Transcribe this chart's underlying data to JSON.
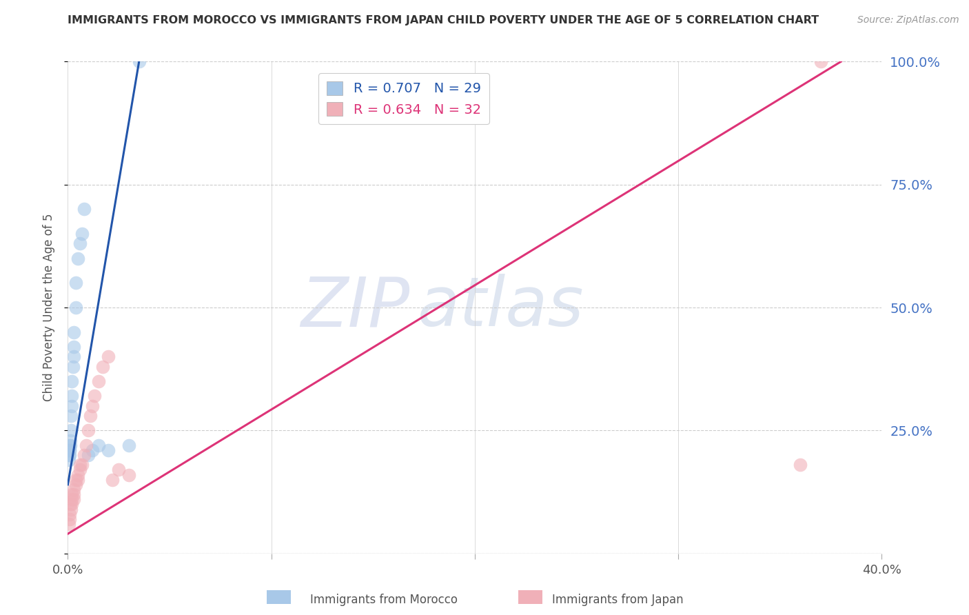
{
  "title": "IMMIGRANTS FROM MOROCCO VS IMMIGRANTS FROM JAPAN CHILD POVERTY UNDER THE AGE OF 5 CORRELATION CHART",
  "source": "Source: ZipAtlas.com",
  "ylabel": "Child Poverty Under the Age of 5",
  "watermark_zip": "ZIP",
  "watermark_atlas": "atlas",
  "xlim": [
    0.0,
    0.4
  ],
  "ylim": [
    0.0,
    1.0
  ],
  "yticks": [
    0.0,
    0.25,
    0.5,
    0.75,
    1.0
  ],
  "ytick_labels": [
    "",
    "25.0%",
    "50.0%",
    "75.0%",
    "100.0%"
  ],
  "xticks": [
    0.0,
    0.1,
    0.2,
    0.3,
    0.4
  ],
  "xtick_labels": [
    "0.0%",
    "",
    "",
    "",
    "40.0%"
  ],
  "morocco_R": 0.707,
  "morocco_N": 29,
  "japan_R": 0.634,
  "japan_N": 32,
  "morocco_color": "#a8c8e8",
  "japan_color": "#f0b0b8",
  "morocco_line_color": "#2255aa",
  "japan_line_color": "#dd3377",
  "legend_morocco_label": "R = 0.707   N = 29",
  "legend_japan_label": "R = 0.634   N = 32",
  "bottom_legend_morocco": "Immigrants from Morocco",
  "bottom_legend_japan": "Immigrants from Japan",
  "morocco_x": [
    0.0005,
    0.0005,
    0.0008,
    0.001,
    0.001,
    0.001,
    0.0012,
    0.0012,
    0.0015,
    0.0015,
    0.002,
    0.002,
    0.002,
    0.0025,
    0.003,
    0.003,
    0.003,
    0.004,
    0.004,
    0.005,
    0.006,
    0.007,
    0.008,
    0.01,
    0.012,
    0.015,
    0.02,
    0.03,
    0.035
  ],
  "morocco_y": [
    0.19,
    0.2,
    0.21,
    0.2,
    0.21,
    0.22,
    0.22,
    0.23,
    0.25,
    0.28,
    0.3,
    0.32,
    0.35,
    0.38,
    0.4,
    0.42,
    0.45,
    0.5,
    0.55,
    0.6,
    0.63,
    0.65,
    0.7,
    0.2,
    0.21,
    0.22,
    0.21,
    0.22,
    1.0
  ],
  "japan_x": [
    0.0005,
    0.001,
    0.001,
    0.0012,
    0.0015,
    0.002,
    0.002,
    0.002,
    0.003,
    0.003,
    0.003,
    0.004,
    0.004,
    0.005,
    0.005,
    0.006,
    0.006,
    0.007,
    0.008,
    0.009,
    0.01,
    0.011,
    0.012,
    0.013,
    0.015,
    0.017,
    0.02,
    0.022,
    0.025,
    0.03,
    0.36,
    0.37
  ],
  "japan_y": [
    0.06,
    0.07,
    0.08,
    0.1,
    0.09,
    0.1,
    0.11,
    0.12,
    0.11,
    0.12,
    0.13,
    0.14,
    0.15,
    0.15,
    0.16,
    0.17,
    0.18,
    0.18,
    0.2,
    0.22,
    0.25,
    0.28,
    0.3,
    0.32,
    0.35,
    0.38,
    0.4,
    0.15,
    0.17,
    0.16,
    0.18,
    1.0
  ],
  "morocco_line_x0": 0.0,
  "morocco_line_y0": 0.14,
  "morocco_line_x1": 0.035,
  "morocco_line_y1": 1.0,
  "japan_line_x0": 0.0,
  "japan_line_y0": 0.04,
  "japan_line_x1": 0.38,
  "japan_line_y1": 1.0,
  "background_color": "#ffffff",
  "grid_color": "#cccccc",
  "title_color": "#333333",
  "axis_label_color": "#555555",
  "right_tick_color": "#4472c4"
}
